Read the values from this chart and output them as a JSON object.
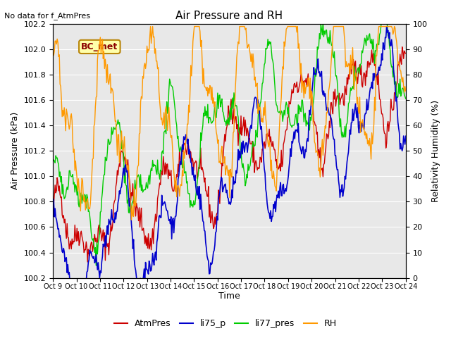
{
  "title": "Air Pressure and RH",
  "xlabel": "Time",
  "ylabel_left": "Air Pressure (kPa)",
  "ylabel_right": "Relativity Humidity (%)",
  "ylim_left": [
    100.2,
    102.2
  ],
  "ylim_right": [
    0,
    100
  ],
  "no_data_text": "No data for f_AtmPres",
  "bc_met_label": "BC_met",
  "x_tick_labels": [
    "Oct 9",
    "Oct 10",
    "Oct 11",
    "Oct 12",
    "Oct 13",
    "Oct 14",
    "Oct 15",
    "Oct 16",
    "Oct 17",
    "Oct 18",
    "Oct 19",
    "Oct 20",
    "Oct 21",
    "Oct 22",
    "Oct 23",
    "Oct 24"
  ],
  "background_color": "#e8e8e8",
  "legend_entries": [
    "AtmPres",
    "li75_p",
    "li77_pres",
    "RH"
  ],
  "line_colors": [
    "#cc0000",
    "#0000cc",
    "#00cc00",
    "#ff9900"
  ]
}
